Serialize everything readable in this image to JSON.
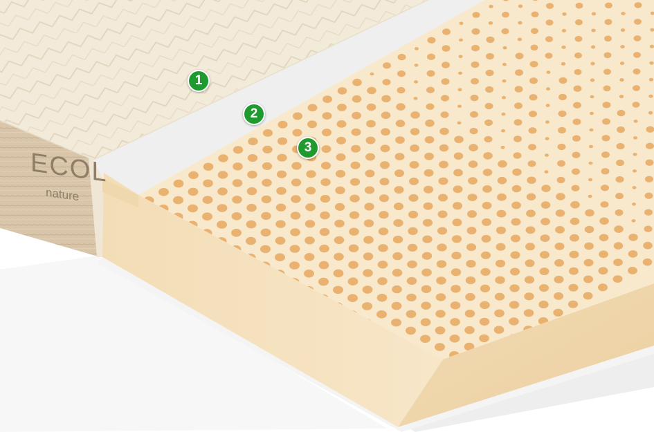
{
  "brand": {
    "name": "ECOL",
    "tagline": "nature"
  },
  "markers": [
    {
      "label": "1"
    },
    {
      "label": "2"
    },
    {
      "label": "3"
    }
  ],
  "colors": {
    "latex": "#f6e4c3",
    "latex_edge": "#f0d8b0",
    "pore": "#e8a860",
    "quilt": "#f2ead9",
    "fabric_side": "#d6c3a8",
    "marker": "#1f9a2f"
  }
}
